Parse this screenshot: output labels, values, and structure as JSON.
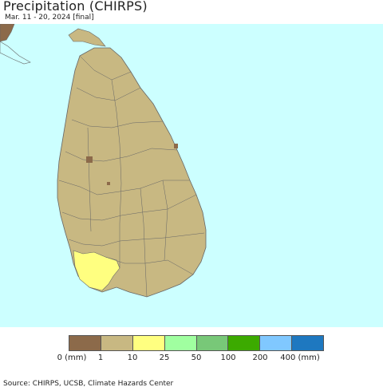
{
  "title": "Precipitation (CHIRPS)",
  "subtitle": "Mar. 11 - 20, 2024 [final]",
  "source": "Source: CHIRPS, UCSB, Climate Hazards Center",
  "colors": {
    "ocean": "#ccffff",
    "land_dry": "#c8b882",
    "land_zero": "#8c6a4a",
    "land_10_25": "#ffff80",
    "border": "#666666"
  },
  "legend": {
    "swatches": [
      "#8c6a4a",
      "#c8b882",
      "#ffff80",
      "#a0ffa0",
      "#78c878",
      "#3caa00",
      "#80c8ff",
      "#1e78c0"
    ],
    "labels": [
      "0 (mm)",
      "1",
      "10",
      "25",
      "50",
      "100",
      "200",
      "400 (mm)"
    ]
  }
}
